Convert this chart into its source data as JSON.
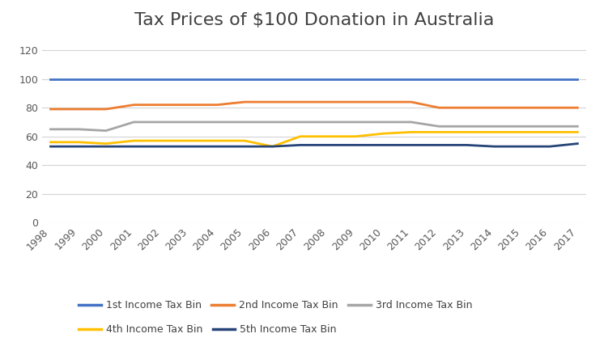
{
  "title": "Tax Prices of $100 Donation in Australia",
  "years": [
    1998,
    1999,
    2000,
    2001,
    2002,
    2003,
    2004,
    2005,
    2006,
    2007,
    2008,
    2009,
    2010,
    2011,
    2012,
    2013,
    2014,
    2015,
    2016,
    2017
  ],
  "series_order": [
    "1st Income Tax Bin",
    "2nd Income Tax Bin",
    "3rd Income Tax Bin",
    "4th Income Tax Bin",
    "5th Income Tax Bin"
  ],
  "series": {
    "1st Income Tax Bin": [
      100,
      100,
      100,
      100,
      100,
      100,
      100,
      100,
      100,
      100,
      100,
      100,
      100,
      100,
      100,
      100,
      100,
      100,
      100,
      100
    ],
    "2nd Income Tax Bin": [
      79,
      79,
      79,
      82,
      82,
      82,
      82,
      84,
      84,
      84,
      84,
      84,
      84,
      84,
      80,
      80,
      80,
      80,
      80,
      80
    ],
    "3rd Income Tax Bin": [
      65,
      65,
      64,
      70,
      70,
      70,
      70,
      70,
      70,
      70,
      70,
      70,
      70,
      70,
      67,
      67,
      67,
      67,
      67,
      67
    ],
    "4th Income Tax Bin": [
      56,
      56,
      55,
      57,
      57,
      57,
      57,
      57,
      53,
      60,
      60,
      60,
      62,
      63,
      63,
      63,
      63,
      63,
      63,
      63
    ],
    "5th Income Tax Bin": [
      53,
      53,
      53,
      53,
      53,
      53,
      53,
      53,
      53,
      54,
      54,
      54,
      54,
      54,
      54,
      54,
      53,
      53,
      53,
      55
    ]
  },
  "colors": {
    "1st Income Tax Bin": "#4472C4",
    "2nd Income Tax Bin": "#ED7D31",
    "3rd Income Tax Bin": "#A5A5A5",
    "4th Income Tax Bin": "#FFC000",
    "5th Income Tax Bin": "#264478"
  },
  "ylim": [
    0,
    130
  ],
  "yticks": [
    0,
    20,
    40,
    60,
    80,
    100,
    120
  ],
  "background_color": "#FFFFFF",
  "title_fontsize": 16,
  "tick_fontsize": 9,
  "line_width": 2.0,
  "grid_color": "#D3D3D3",
  "tick_label_color": "#595959"
}
